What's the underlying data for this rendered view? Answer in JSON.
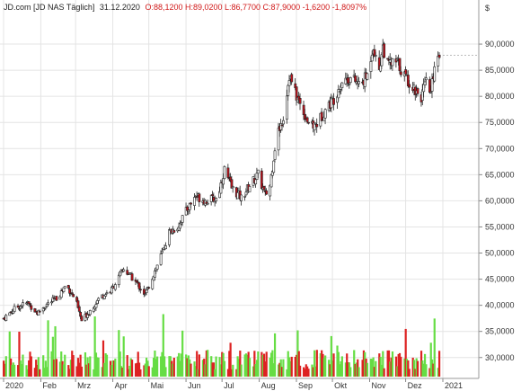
{
  "header": {
    "symbol": "JD.com [JD NAS  Täglich]",
    "date": "31.12.2020",
    "ohlc": "O:88,1200 H:89,0200 L:86,7700 C:87,9000 -1,6200 -1,8097%"
  },
  "colors": {
    "up": "#ffffff",
    "down": "#c0141e",
    "vol_up": "#66dd44",
    "vol_down": "#dd2222",
    "grid": "#e4e4e4",
    "header_red": "#d01818",
    "wick": "#222222"
  },
  "chart_data": {
    "type": "candlestick",
    "currency_label": "$",
    "ylim": [
      26000,
      95000
    ],
    "y_ticks": [
      {
        "v": 30000,
        "label": "30,0000"
      },
      {
        "v": 35000,
        "label": "35,0000"
      },
      {
        "v": 40000,
        "label": "40,0000"
      },
      {
        "v": 45000,
        "label": "45,0000"
      },
      {
        "v": 50000,
        "label": "50,0000"
      },
      {
        "v": 55000,
        "label": "55,0000"
      },
      {
        "v": 60000,
        "label": "60,0000"
      },
      {
        "v": 65000,
        "label": "65,0000"
      },
      {
        "v": 70000,
        "label": "70,0000"
      },
      {
        "v": 75000,
        "label": "75,0000"
      },
      {
        "v": 80000,
        "label": "80,0000"
      },
      {
        "v": 85000,
        "label": "85,0000"
      },
      {
        "v": 90000,
        "label": "90,0000"
      }
    ],
    "x_ticks": [
      {
        "day": 0,
        "label": "2020"
      },
      {
        "day": 31,
        "label": "Feb"
      },
      {
        "day": 60,
        "label": "Mrz"
      },
      {
        "day": 91,
        "label": "Apr"
      },
      {
        "day": 121,
        "label": "Mai"
      },
      {
        "day": 152,
        "label": "Jun"
      },
      {
        "day": 182,
        "label": "Jul"
      },
      {
        "day": 213,
        "label": "Aug"
      },
      {
        "day": 244,
        "label": "Sep"
      },
      {
        "day": 274,
        "label": "Okt"
      },
      {
        "day": 305,
        "label": "Nov"
      },
      {
        "day": 335,
        "label": "Dez"
      },
      {
        "day": 366,
        "label": "2021"
      }
    ],
    "close_path": [
      [
        0,
        37.5
      ],
      [
        10,
        39.5
      ],
      [
        20,
        40.5
      ],
      [
        28,
        38.5
      ],
      [
        35,
        40.0
      ],
      [
        45,
        41.5
      ],
      [
        52,
        44.0
      ],
      [
        60,
        41.0
      ],
      [
        65,
        37.0
      ],
      [
        72,
        39.0
      ],
      [
        80,
        41.5
      ],
      [
        90,
        43.0
      ],
      [
        100,
        47.0
      ],
      [
        110,
        44.5
      ],
      [
        118,
        42.0
      ],
      [
        125,
        46.0
      ],
      [
        132,
        50.0
      ],
      [
        138,
        54.0
      ],
      [
        145,
        55.0
      ],
      [
        152,
        58.0
      ],
      [
        160,
        61.0
      ],
      [
        168,
        60.0
      ],
      [
        178,
        60.5
      ],
      [
        184,
        66.0
      ],
      [
        190,
        62.5
      ],
      [
        198,
        60.5
      ],
      [
        205,
        63.0
      ],
      [
        212,
        65.0
      ],
      [
        218,
        61.0
      ],
      [
        222,
        63.0
      ],
      [
        227,
        72.0
      ],
      [
        233,
        76.0
      ],
      [
        238,
        84.0
      ],
      [
        244,
        80.0
      ],
      [
        250,
        77.0
      ],
      [
        256,
        74.0
      ],
      [
        262,
        75.0
      ],
      [
        268,
        77.5
      ],
      [
        275,
        79.5
      ],
      [
        282,
        83.0
      ],
      [
        290,
        83.5
      ],
      [
        297,
        82.0
      ],
      [
        303,
        84.0
      ],
      [
        308,
        90.0
      ],
      [
        312,
        84.0
      ],
      [
        316,
        89.5
      ],
      [
        320,
        86.0
      ],
      [
        328,
        86.5
      ],
      [
        334,
        84.0
      ],
      [
        342,
        81.5
      ],
      [
        348,
        80.0
      ],
      [
        352,
        82.5
      ],
      [
        356,
        80.5
      ],
      [
        360,
        88.0
      ],
      [
        363,
        87.9
      ]
    ],
    "last_close": 87.9
  }
}
